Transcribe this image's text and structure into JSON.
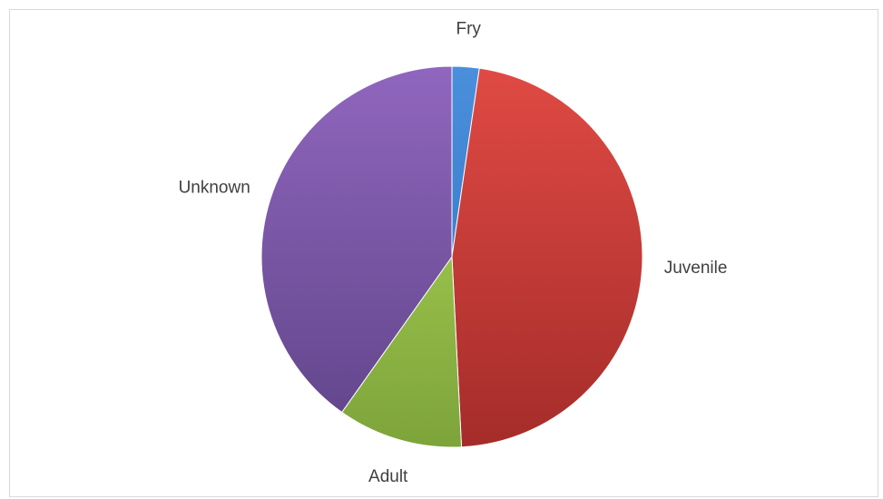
{
  "chart_data": {
    "type": "pie",
    "title": "",
    "categories": [
      "Fry",
      "Juvenile",
      "Adult",
      "Unknown"
    ],
    "values": [
      2.3,
      46.9,
      10.6,
      40.2
    ],
    "unit": "percent",
    "start_angle_deg": 0,
    "direction": "clockwise",
    "legend": "none",
    "data_labels": "category-name-outside",
    "colors": {
      "Fry": {
        "light": "#4a8fdc",
        "dark": "#2f6fbf"
      },
      "Juvenile": {
        "light": "#e04a44",
        "dark": "#a52c2a"
      },
      "Adult": {
        "light": "#b0d95a",
        "dark": "#7da43a"
      },
      "Unknown": {
        "light": "#9066be",
        "dark": "#5f4488"
      }
    }
  }
}
